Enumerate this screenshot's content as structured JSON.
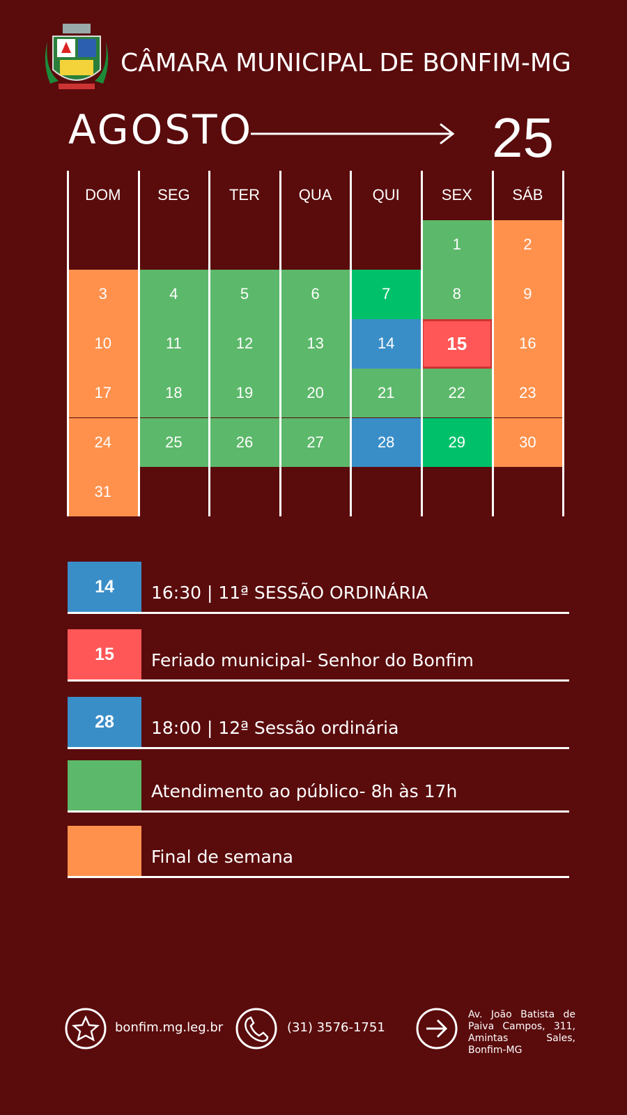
{
  "header": {
    "title": "CÂMARA MUNICIPAL DE BONFIM-MG",
    "month": "AGOSTO",
    "year": "25"
  },
  "calendar": {
    "weekdays": [
      "DOM",
      "SEG",
      "TER",
      "QUA",
      "QUI",
      "SEX",
      "SÁB"
    ],
    "weeks": [
      [
        null,
        null,
        null,
        null,
        null,
        {
          "day": 1,
          "color": "#5cb86a"
        },
        {
          "day": 2,
          "color": "#ff914d"
        }
      ],
      [
        {
          "day": 3,
          "color": "#ff914d"
        },
        {
          "day": 4,
          "color": "#5cb86a"
        },
        {
          "day": 5,
          "color": "#5cb86a"
        },
        {
          "day": 6,
          "color": "#5cb86a"
        },
        {
          "day": 7,
          "color": "#00c16a"
        },
        {
          "day": 8,
          "color": "#5cb86a"
        },
        {
          "day": 9,
          "color": "#ff914d"
        }
      ],
      [
        {
          "day": 10,
          "color": "#ff914d"
        },
        {
          "day": 11,
          "color": "#5cb86a"
        },
        {
          "day": 12,
          "color": "#5cb86a"
        },
        {
          "day": 13,
          "color": "#5cb86a"
        },
        {
          "day": 14,
          "color": "#3a8ec8"
        },
        {
          "day": 15,
          "color": "#ff5757",
          "bold": true
        },
        {
          "day": 16,
          "color": "#ff914d"
        }
      ],
      [
        {
          "day": 17,
          "color": "#ff914d"
        },
        {
          "day": 18,
          "color": "#5cb86a"
        },
        {
          "day": 19,
          "color": "#5cb86a"
        },
        {
          "day": 20,
          "color": "#5cb86a"
        },
        {
          "day": 21,
          "color": "#5cb86a"
        },
        {
          "day": 22,
          "color": "#5cb86a"
        },
        {
          "day": 23,
          "color": "#ff914d"
        }
      ],
      [
        {
          "day": 24,
          "color": "#ff914d"
        },
        {
          "day": 25,
          "color": "#5cb86a"
        },
        {
          "day": 26,
          "color": "#5cb86a"
        },
        {
          "day": 27,
          "color": "#5cb86a"
        },
        {
          "day": 28,
          "color": "#3a8ec8"
        },
        {
          "day": 29,
          "color": "#00c16a"
        },
        {
          "day": 30,
          "color": "#ff914d"
        }
      ],
      [
        {
          "day": 31,
          "color": "#ff914d"
        },
        null,
        null,
        null,
        null,
        null,
        null
      ]
    ]
  },
  "legend": [
    {
      "badge": "14",
      "text": "16:30 | 11ª SESSÃO ORDINÁRIA",
      "color": "#3a8ec8"
    },
    {
      "badge": "15",
      "text": "Feriado municipal- Senhor do Bonfim",
      "color": "#ff5757"
    },
    {
      "badge": "28",
      "text": "18:00 | 12ª Sessão ordinária",
      "color": "#3a8ec8"
    },
    {
      "text": "Atendimento ao público- 8h às 17h",
      "color": "#5cb86a"
    },
    {
      "text": "Final de semana",
      "color": "#ff914d"
    }
  ],
  "footer": {
    "website": "bonfim.mg.leg.br",
    "phone": "(31) 3576-1751",
    "address": "Av. João Batista de Paiva Campos, 311, Amintas Sales, Bonfim-MG"
  }
}
